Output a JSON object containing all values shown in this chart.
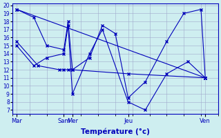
{
  "xlabel": "Température (°c)",
  "background_color": "#ceeef0",
  "grid_color": "#a0a8cc",
  "line_color": "#0000bb",
  "xlim": [
    0,
    96
  ],
  "ylim": [
    7,
    20
  ],
  "yticks": [
    7,
    8,
    9,
    10,
    11,
    12,
    13,
    14,
    15,
    16,
    17,
    18,
    19,
    20
  ],
  "xtick_positions": [
    2,
    24,
    28,
    54,
    90
  ],
  "xtick_labels": [
    "Mar",
    "Sam",
    "Mer",
    "Jeu",
    "Ven"
  ],
  "lines": [
    {
      "x": [
        2,
        90
      ],
      "y": [
        19.5,
        11.0
      ]
    },
    {
      "x": [
        2,
        12,
        22,
        24,
        26,
        28,
        54,
        90
      ],
      "y": [
        15.5,
        12.5,
        12.0,
        12.0,
        12.0,
        12.0,
        11.5,
        11.0
      ]
    },
    {
      "x": [
        2,
        10,
        16,
        24,
        26,
        28,
        36,
        42,
        48,
        54,
        62,
        72,
        80,
        88,
        90
      ],
      "y": [
        19.5,
        18.5,
        15.0,
        14.5,
        18.0,
        12.0,
        13.5,
        17.5,
        16.5,
        8.5,
        10.5,
        15.5,
        19.0,
        19.5,
        11.0
      ]
    },
    {
      "x": [
        2,
        10,
        16,
        24,
        26,
        28,
        36,
        42,
        54,
        62,
        72,
        82,
        90
      ],
      "y": [
        15.0,
        12.5,
        13.5,
        14.0,
        17.5,
        9.0,
        14.0,
        17.0,
        8.0,
        7.0,
        11.5,
        13.0,
        11.0
      ]
    }
  ]
}
